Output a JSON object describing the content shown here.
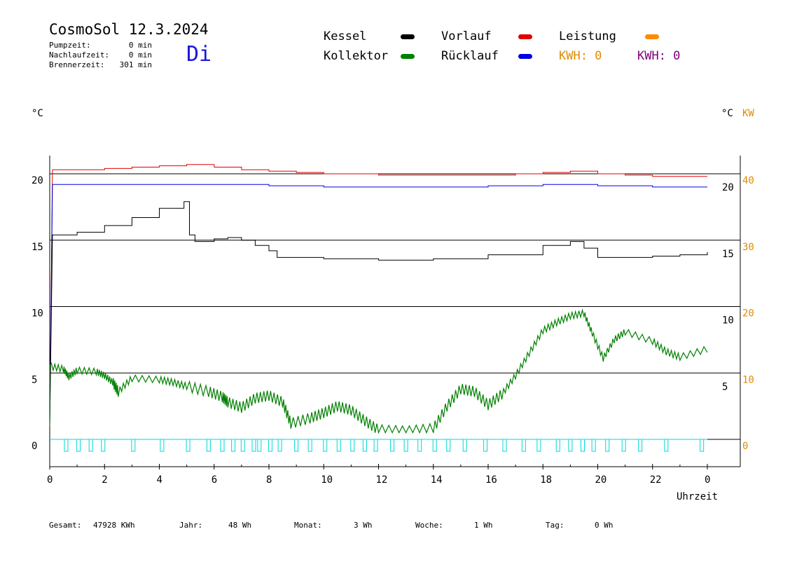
{
  "header": {
    "title": "CosmoSol 12.3.2024",
    "weekday": "Di",
    "stats": [
      {
        "label": "Pumpzeit:",
        "value": "0 min"
      },
      {
        "label": "Nachlaufzeit:",
        "value": "0 min"
      },
      {
        "label": "Brennerzeit:",
        "value": "301 min"
      }
    ]
  },
  "legend": {
    "kessel": {
      "label": "Kessel",
      "color": "#000000"
    },
    "vorlauf": {
      "label": "Vorlauf",
      "color": "#e00000"
    },
    "leistung": {
      "label": "Leistung",
      "color": "#ff8c00"
    },
    "kollektor": {
      "label": "Kollektor",
      "color": "#008000"
    },
    "ruecklauf": {
      "label": "Rücklauf",
      "color": "#0000e0"
    },
    "kwh_a": {
      "label": "KWH: 0",
      "color": "#e08c00"
    },
    "kwh_b": {
      "label": "KWH: 0",
      "color": "#800080"
    }
  },
  "units": {
    "left": "°C",
    "right": "°C",
    "right_kw": "KW"
  },
  "footer": [
    {
      "label": "Gesamt:",
      "value": "47928 KWh"
    },
    {
      "label": "Jahr:",
      "value": "48 Wh"
    },
    {
      "label": "Monat:",
      "value": "3 Wh"
    },
    {
      "label": "Woche:",
      "value": "1 Wh"
    },
    {
      "label": "Tag:",
      "value": "0 Wh"
    }
  ],
  "chart_data": {
    "type": "line",
    "xlabel": "Uhrzeit",
    "x_ticks": [
      "0",
      "2",
      "4",
      "6",
      "8",
      "10",
      "12",
      "14",
      "16",
      "18",
      "20",
      "22",
      "0"
    ],
    "xlim": [
      0,
      24
    ],
    "left_axis": {
      "ticks": [
        "0",
        "5",
        "10",
        "15",
        "20"
      ],
      "ylim": [
        0,
        20
      ]
    },
    "right_axis_inner": {
      "ticks": [
        "5",
        "10",
        "15",
        "20"
      ]
    },
    "right_axis_kw": {
      "ticks": [
        "0",
        "10",
        "20",
        "30",
        "40"
      ],
      "ylim": [
        0,
        40
      ],
      "color": "#e08c00"
    },
    "grid": "horizontal",
    "series": [
      {
        "name": "Vorlauf",
        "color": "#e00000",
        "points": [
          [
            0.1,
            20.3
          ],
          [
            1,
            20.3
          ],
          [
            2,
            20.4
          ],
          [
            3,
            20.5
          ],
          [
            4,
            20.6
          ],
          [
            5,
            20.7
          ],
          [
            6,
            20.5
          ],
          [
            7,
            20.3
          ],
          [
            8,
            20.2
          ],
          [
            9,
            20.1
          ],
          [
            10,
            20.0
          ],
          [
            12,
            19.9
          ],
          [
            14,
            19.9
          ],
          [
            16,
            19.9
          ],
          [
            17,
            20.0
          ],
          [
            18,
            20.1
          ],
          [
            19,
            20.2
          ],
          [
            19.5,
            20.2
          ],
          [
            20,
            20.0
          ],
          [
            21,
            19.9
          ],
          [
            22,
            19.8
          ],
          [
            24,
            19.8
          ]
        ]
      },
      {
        "name": "Rücklauf",
        "color": "#0000e0",
        "points": [
          [
            0.1,
            19.2
          ],
          [
            2,
            19.2
          ],
          [
            4,
            19.2
          ],
          [
            6,
            19.2
          ],
          [
            8,
            19.1
          ],
          [
            10,
            19.0
          ],
          [
            12,
            19.0
          ],
          [
            14,
            19.0
          ],
          [
            16,
            19.1
          ],
          [
            18,
            19.2
          ],
          [
            19.5,
            19.2
          ],
          [
            20,
            19.1
          ],
          [
            22,
            19.0
          ],
          [
            24,
            19.0
          ]
        ]
      },
      {
        "name": "Kessel",
        "color": "#000000",
        "points": [
          [
            0.1,
            15.4
          ],
          [
            0.5,
            15.4
          ],
          [
            1,
            15.6
          ],
          [
            2,
            16.1
          ],
          [
            3,
            16.7
          ],
          [
            4,
            17.4
          ],
          [
            4.9,
            17.9
          ],
          [
            5.1,
            15.4
          ],
          [
            5.3,
            14.9
          ],
          [
            6,
            15.1
          ],
          [
            6.5,
            15.2
          ],
          [
            7,
            15.0
          ],
          [
            7.5,
            14.6
          ],
          [
            8,
            14.2
          ],
          [
            8.3,
            13.7
          ],
          [
            10,
            13.6
          ],
          [
            12,
            13.5
          ],
          [
            14,
            13.6
          ],
          [
            16,
            13.9
          ],
          [
            18,
            14.6
          ],
          [
            19,
            14.9
          ],
          [
            19.5,
            14.4
          ],
          [
            20,
            13.7
          ],
          [
            21,
            13.7
          ],
          [
            22,
            13.8
          ],
          [
            23,
            13.9
          ],
          [
            24,
            14.1
          ]
        ]
      },
      {
        "name": "Kollektor",
        "color": "#008000",
        "points": [
          [
            0.0,
            5.5
          ],
          [
            0.5,
            5.3
          ],
          [
            0.7,
            4.7
          ],
          [
            1,
            5.2
          ],
          [
            1.7,
            5.1
          ],
          [
            2,
            4.8
          ],
          [
            2.3,
            4.3
          ],
          [
            2.5,
            3.6
          ],
          [
            3,
            4.6
          ],
          [
            4,
            4.5
          ],
          [
            4.5,
            4.3
          ],
          [
            5,
            4.0
          ],
          [
            5.8,
            3.6
          ],
          [
            6.3,
            3.2
          ],
          [
            6.5,
            2.8
          ],
          [
            7,
            2.4
          ],
          [
            7.5,
            3.1
          ],
          [
            8,
            3.3
          ],
          [
            8.5,
            2.8
          ],
          [
            8.8,
            1.2
          ],
          [
            9.5,
            1.6
          ],
          [
            10,
            2.0
          ],
          [
            10.5,
            2.5
          ],
          [
            11,
            2.2
          ],
          [
            11.5,
            1.4
          ],
          [
            12,
            0.7
          ],
          [
            13,
            0.6
          ],
          [
            14,
            0.8
          ],
          [
            14.5,
            2.5
          ],
          [
            15,
            3.8
          ],
          [
            15.5,
            3.6
          ],
          [
            16,
            2.6
          ],
          [
            16.5,
            3.4
          ],
          [
            17,
            4.8
          ],
          [
            17.5,
            6.5
          ],
          [
            18,
            8.2
          ],
          [
            18.5,
            8.8
          ],
          [
            19,
            9.3
          ],
          [
            19.5,
            9.5
          ],
          [
            19.8,
            8.0
          ],
          [
            20.2,
            6.1
          ],
          [
            20.6,
            7.5
          ],
          [
            21,
            8.1
          ],
          [
            22,
            7.4
          ],
          [
            22.5,
            6.6
          ],
          [
            23,
            6.2
          ],
          [
            24,
            6.8
          ]
        ]
      },
      {
        "name": "Pumpe",
        "color": "#00d8d8",
        "pulses": [
          0.6,
          1.05,
          1.5,
          1.95,
          3.05,
          4.1,
          5.05,
          5.8,
          6.3,
          6.7,
          7.05,
          7.45,
          7.65,
          8.05,
          8.4,
          9.0,
          9.5,
          10.05,
          10.55,
          11.05,
          11.5,
          11.9,
          12.5,
          13.0,
          13.5,
          14.05,
          14.55,
          15.15,
          15.9,
          16.6,
          17.3,
          17.85,
          18.55,
          19.0,
          19.45,
          19.85,
          20.35,
          20.95,
          21.55,
          22.5,
          23.8
        ]
      }
    ]
  }
}
